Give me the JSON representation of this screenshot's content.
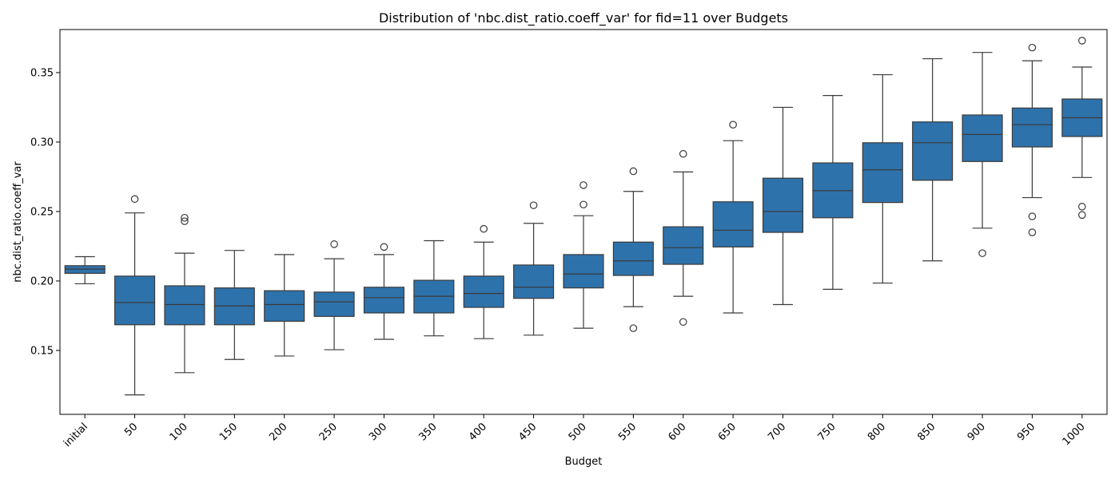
{
  "chart_data": {
    "type": "box",
    "title": "Distribution of 'nbc.dist_ratio.coeff_var' for fid=11 over Budgets",
    "xlabel": "Budget",
    "ylabel": "nbc.dist_ratio.coeff_var",
    "ylim": [
      0.104,
      0.381
    ],
    "yticks": [
      0.15,
      0.2,
      0.25,
      0.3,
      0.35
    ],
    "ytick_labels": [
      "0.15",
      "0.20",
      "0.25",
      "0.30",
      "0.35"
    ],
    "categories": [
      "initial",
      "50",
      "100",
      "150",
      "200",
      "250",
      "300",
      "350",
      "400",
      "450",
      "500",
      "550",
      "600",
      "650",
      "700",
      "750",
      "800",
      "850",
      "900",
      "950",
      "1000"
    ],
    "box_color": "#2e72ab",
    "line_color": "#3a3a3a",
    "grid": false,
    "boxes": [
      {
        "whislo": 0.198,
        "q1": 0.2055,
        "med": 0.2085,
        "q3": 0.211,
        "whishi": 0.2175,
        "fliers": []
      },
      {
        "whislo": 0.118,
        "q1": 0.1685,
        "med": 0.1845,
        "q3": 0.2035,
        "whishi": 0.249,
        "fliers": [
          0.259
        ]
      },
      {
        "whislo": 0.134,
        "q1": 0.1685,
        "med": 0.183,
        "q3": 0.1965,
        "whishi": 0.22,
        "fliers": [
          0.243,
          0.2455
        ]
      },
      {
        "whislo": 0.1435,
        "q1": 0.1685,
        "med": 0.182,
        "q3": 0.195,
        "whishi": 0.222,
        "fliers": []
      },
      {
        "whislo": 0.146,
        "q1": 0.171,
        "med": 0.183,
        "q3": 0.193,
        "whishi": 0.219,
        "fliers": []
      },
      {
        "whislo": 0.1505,
        "q1": 0.1745,
        "med": 0.185,
        "q3": 0.192,
        "whishi": 0.216,
        "fliers": [
          0.2265
        ]
      },
      {
        "whislo": 0.158,
        "q1": 0.177,
        "med": 0.188,
        "q3": 0.1955,
        "whishi": 0.219,
        "fliers": [
          0.2245
        ]
      },
      {
        "whislo": 0.1605,
        "q1": 0.177,
        "med": 0.189,
        "q3": 0.2005,
        "whishi": 0.229,
        "fliers": []
      },
      {
        "whislo": 0.1585,
        "q1": 0.181,
        "med": 0.191,
        "q3": 0.2035,
        "whishi": 0.228,
        "fliers": [
          0.2375
        ]
      },
      {
        "whislo": 0.161,
        "q1": 0.1875,
        "med": 0.1955,
        "q3": 0.2115,
        "whishi": 0.2415,
        "fliers": [
          0.2545
        ]
      },
      {
        "whislo": 0.166,
        "q1": 0.195,
        "med": 0.205,
        "q3": 0.219,
        "whishi": 0.247,
        "fliers": [
          0.255,
          0.269
        ]
      },
      {
        "whislo": 0.1815,
        "q1": 0.204,
        "med": 0.2145,
        "q3": 0.228,
        "whishi": 0.2645,
        "fliers": [
          0.166,
          0.279
        ]
      },
      {
        "whislo": 0.189,
        "q1": 0.212,
        "med": 0.224,
        "q3": 0.239,
        "whishi": 0.2785,
        "fliers": [
          0.1705,
          0.2915
        ]
      },
      {
        "whislo": 0.177,
        "q1": 0.2245,
        "med": 0.2365,
        "q3": 0.257,
        "whishi": 0.301,
        "fliers": [
          0.3125
        ]
      },
      {
        "whislo": 0.183,
        "q1": 0.235,
        "med": 0.25,
        "q3": 0.274,
        "whishi": 0.325,
        "fliers": []
      },
      {
        "whislo": 0.194,
        "q1": 0.2455,
        "med": 0.265,
        "q3": 0.285,
        "whishi": 0.3335,
        "fliers": []
      },
      {
        "whislo": 0.1985,
        "q1": 0.2565,
        "med": 0.28,
        "q3": 0.2995,
        "whishi": 0.3485,
        "fliers": []
      },
      {
        "whislo": 0.2145,
        "q1": 0.2725,
        "med": 0.2995,
        "q3": 0.3145,
        "whishi": 0.36,
        "fliers": []
      },
      {
        "whislo": 0.238,
        "q1": 0.286,
        "med": 0.3055,
        "q3": 0.3195,
        "whishi": 0.3645,
        "fliers": [
          0.22
        ]
      },
      {
        "whislo": 0.26,
        "q1": 0.2965,
        "med": 0.3125,
        "q3": 0.3245,
        "whishi": 0.3585,
        "fliers": [
          0.235,
          0.2465,
          0.368
        ]
      },
      {
        "whislo": 0.2745,
        "q1": 0.304,
        "med": 0.3175,
        "q3": 0.331,
        "whishi": 0.354,
        "fliers": [
          0.2475,
          0.2535,
          0.373
        ]
      }
    ]
  }
}
